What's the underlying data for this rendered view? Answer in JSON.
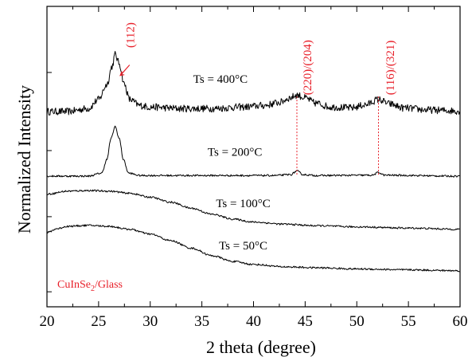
{
  "chart_data": {
    "type": "line",
    "xlabel": "2 theta (degree)",
    "ylabel": "Normalized Intensity",
    "xlim": [
      20,
      60
    ],
    "x_ticks": [
      20,
      25,
      30,
      35,
      40,
      45,
      50,
      55,
      60
    ],
    "y_ticks_labeled": false,
    "sample_label": {
      "main": "CuInSe",
      "sub": "2",
      "tail": "/Glass",
      "color": "#e8202a"
    },
    "peak_labels": [
      {
        "text": "(112)",
        "x": 26.6
      },
      {
        "text": "(220)/(204)",
        "x": 44.2
      },
      {
        "text": "(116)/(321)",
        "x": 52.2
      }
    ],
    "peak_guides_x": [
      44.2,
      52.1
    ],
    "series": [
      {
        "name": "Ts = 400°C",
        "points": [
          [
            20,
            0.65
          ],
          [
            22,
            0.65
          ],
          [
            24,
            0.66
          ],
          [
            25,
            0.69
          ],
          [
            25.8,
            0.74
          ],
          [
            26.3,
            0.8
          ],
          [
            26.6,
            0.84
          ],
          [
            27,
            0.81
          ],
          [
            27.5,
            0.74
          ],
          [
            28,
            0.69
          ],
          [
            29,
            0.67
          ],
          [
            30,
            0.665
          ],
          [
            33,
            0.66
          ],
          [
            36,
            0.66
          ],
          [
            39,
            0.665
          ],
          [
            41,
            0.67
          ],
          [
            42.5,
            0.68
          ],
          [
            43.5,
            0.695
          ],
          [
            44.2,
            0.705
          ],
          [
            45,
            0.695
          ],
          [
            46,
            0.678
          ],
          [
            47.5,
            0.665
          ],
          [
            49.5,
            0.662
          ],
          [
            50.8,
            0.672
          ],
          [
            52.1,
            0.69
          ],
          [
            53.2,
            0.675
          ],
          [
            54.5,
            0.662
          ],
          [
            57,
            0.655
          ],
          [
            60,
            0.652
          ]
        ],
        "noise": 0.012
      },
      {
        "name": "Ts = 200°C",
        "points": [
          [
            20,
            0.435
          ],
          [
            24,
            0.435
          ],
          [
            25.3,
            0.445
          ],
          [
            25.8,
            0.49
          ],
          [
            26.2,
            0.56
          ],
          [
            26.6,
            0.6
          ],
          [
            27,
            0.56
          ],
          [
            27.4,
            0.49
          ],
          [
            27.9,
            0.445
          ],
          [
            29,
            0.437
          ],
          [
            35,
            0.437
          ],
          [
            42,
            0.437
          ],
          [
            43.6,
            0.44
          ],
          [
            44.2,
            0.452
          ],
          [
            44.8,
            0.44
          ],
          [
            46,
            0.437
          ],
          [
            51.5,
            0.438
          ],
          [
            52.1,
            0.447
          ],
          [
            52.7,
            0.438
          ],
          [
            60,
            0.435
          ]
        ],
        "noise": 0.003
      },
      {
        "name": "Ts = 100°C",
        "points": [
          [
            20,
            0.375
          ],
          [
            22,
            0.385
          ],
          [
            24,
            0.387
          ],
          [
            26,
            0.385
          ],
          [
            28,
            0.378
          ],
          [
            30,
            0.365
          ],
          [
            32,
            0.348
          ],
          [
            34,
            0.328
          ],
          [
            36,
            0.308
          ],
          [
            38,
            0.292
          ],
          [
            40,
            0.282
          ],
          [
            43,
            0.275
          ],
          [
            46,
            0.27
          ],
          [
            50,
            0.266
          ],
          [
            55,
            0.262
          ],
          [
            60,
            0.258
          ]
        ],
        "noise": 0.003
      },
      {
        "name": "Ts = 50°C",
        "points": [
          [
            20,
            0.247
          ],
          [
            21,
            0.26
          ],
          [
            22,
            0.268
          ],
          [
            24,
            0.271
          ],
          [
            26,
            0.268
          ],
          [
            28,
            0.258
          ],
          [
            30,
            0.242
          ],
          [
            32,
            0.22
          ],
          [
            34,
            0.195
          ],
          [
            36,
            0.17
          ],
          [
            38,
            0.151
          ],
          [
            40,
            0.141
          ],
          [
            43,
            0.133
          ],
          [
            46,
            0.13
          ],
          [
            50,
            0.126
          ],
          [
            55,
            0.123
          ],
          [
            60,
            0.12
          ]
        ],
        "noise": 0.003
      }
    ],
    "grid": false,
    "legend": "inline labels"
  }
}
